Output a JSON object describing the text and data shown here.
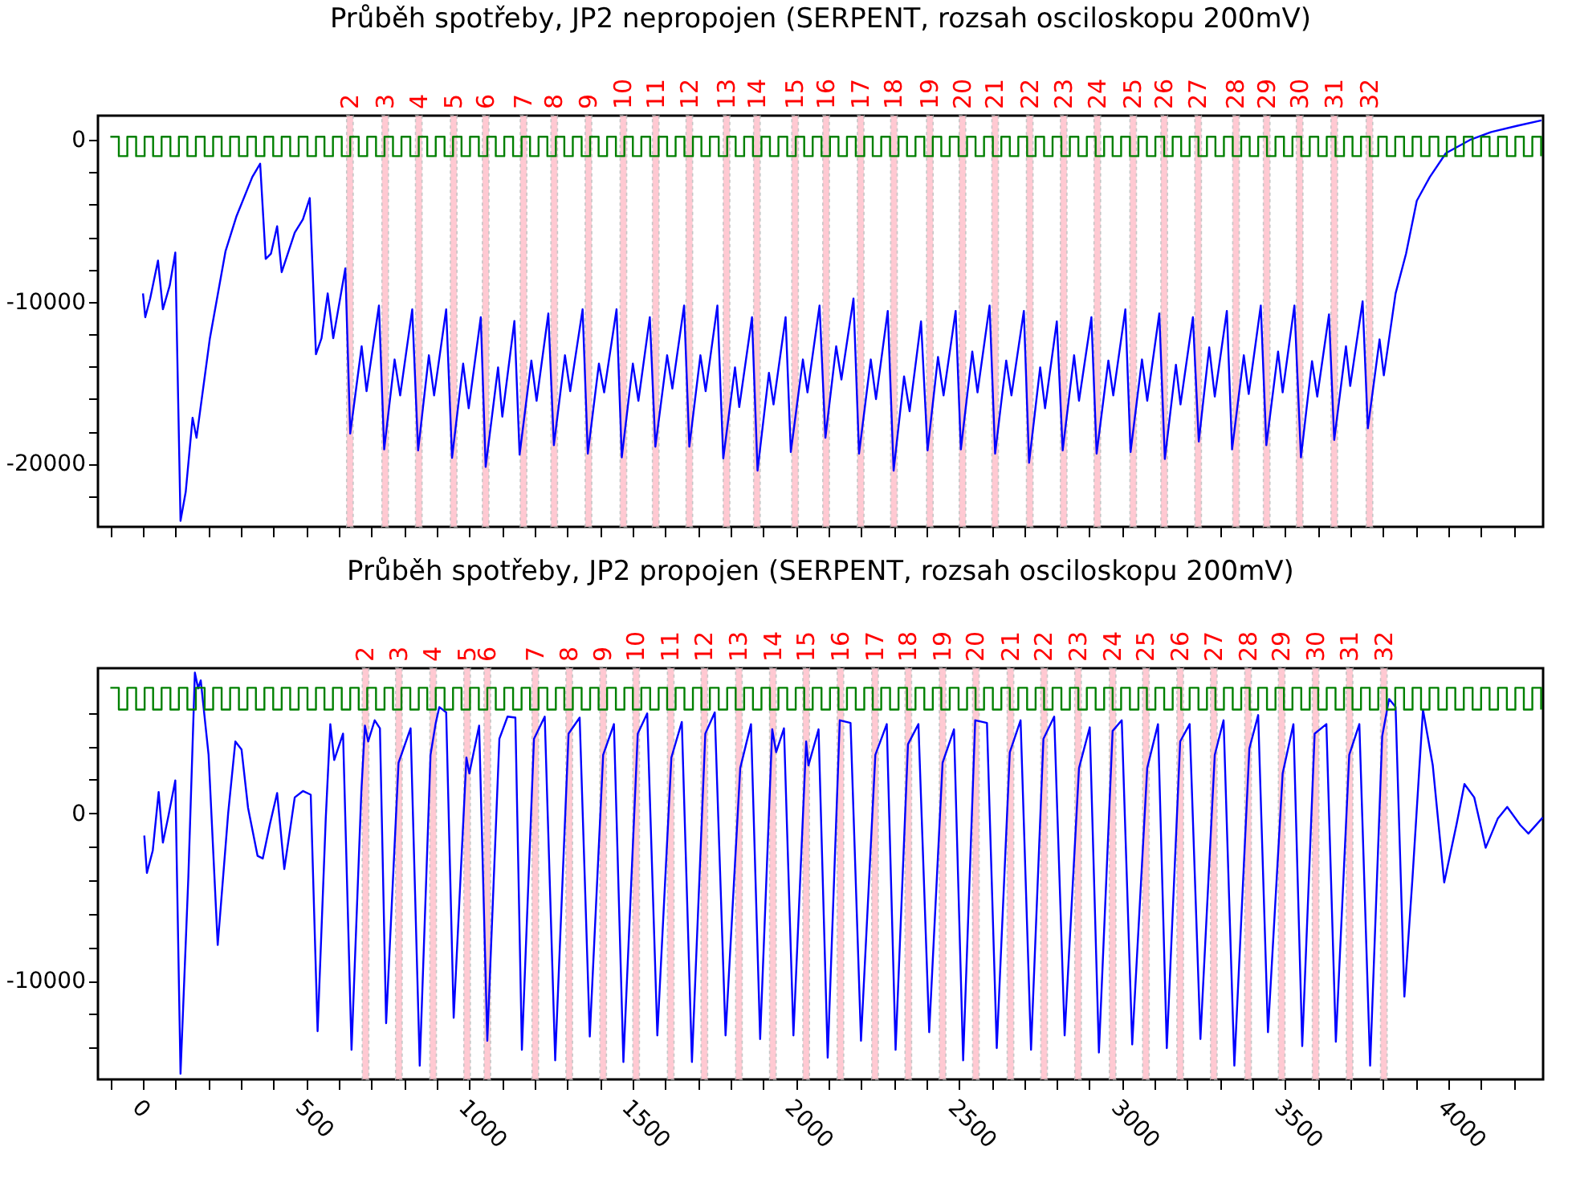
{
  "chart_data": [
    {
      "type": "line",
      "title": "Průběh spotřeby, JP2 nepropojen (SERPENT, rozsah osciloskopu 200mV)",
      "xlim": [
        -138,
        4290
      ],
      "ylim": [
        -23900,
        1500
      ],
      "xticks": [
        {
          "value": -100,
          "label": null
        },
        0,
        {
          "value": 100,
          "label": null
        },
        {
          "value": 200,
          "label": null
        },
        {
          "value": 300,
          "label": null
        },
        {
          "value": 400,
          "label": null
        },
        500,
        {
          "value": 600,
          "label": null
        },
        {
          "value": 700,
          "label": null
        },
        {
          "value": 800,
          "label": null
        },
        {
          "value": 900,
          "label": null
        },
        1000,
        {
          "value": 1100,
          "label": null
        },
        {
          "value": 1200,
          "label": null
        },
        {
          "value": 1300,
          "label": null
        },
        {
          "value": 1400,
          "label": null
        },
        1500,
        {
          "value": 1600,
          "label": null
        },
        {
          "value": 1700,
          "label": null
        },
        {
          "value": 1800,
          "label": null
        },
        {
          "value": 1900,
          "label": null
        },
        2000,
        {
          "value": 2100,
          "label": null
        },
        {
          "value": 2200,
          "label": null
        },
        {
          "value": 2300,
          "label": null
        },
        {
          "value": 2400,
          "label": null
        },
        2500,
        {
          "value": 2600,
          "label": null
        },
        {
          "value": 2700,
          "label": null
        },
        {
          "value": 2800,
          "label": null
        },
        {
          "value": 2900,
          "label": null
        },
        3000,
        {
          "value": 3100,
          "label": null
        },
        {
          "value": 3200,
          "label": null
        },
        {
          "value": 3300,
          "label": null
        },
        {
          "value": 3400,
          "label": null
        },
        3500,
        {
          "value": 3600,
          "label": null
        },
        {
          "value": 3700,
          "label": null
        },
        {
          "value": 3800,
          "label": null
        },
        {
          "value": 3900,
          "label": null
        },
        4000,
        {
          "value": 4100,
          "label": null
        },
        {
          "value": 4200,
          "label": null
        }
      ],
      "yticks": [
        {
          "value": -22000,
          "label": null
        },
        -20000,
        {
          "value": -18000,
          "label": null
        },
        {
          "value": -16000,
          "label": null
        },
        {
          "value": -14000,
          "label": null
        },
        {
          "value": -12000,
          "label": null
        },
        -10000,
        {
          "value": -8000,
          "label": null
        },
        {
          "value": -6000,
          "label": null
        },
        {
          "value": -4000,
          "label": null
        },
        {
          "value": -2000,
          "label": null
        },
        0
      ],
      "tick_labels": "y",
      "bands": [
        {
          "axis": "x",
          "from": 624,
          "to": 644,
          "label": "2",
          "color": "#ffc0cb"
        },
        {
          "axis": "x",
          "from": 732,
          "to": 752,
          "label": "3",
          "color": "#ffc0cb"
        },
        {
          "axis": "x",
          "from": 835,
          "to": 855,
          "label": "4",
          "color": "#ffc0cb"
        },
        {
          "axis": "x",
          "from": 942,
          "to": 962,
          "label": "5",
          "color": "#ffc0cb"
        },
        {
          "axis": "x",
          "from": 1040,
          "to": 1060,
          "label": "6",
          "color": "#ffc0cb"
        },
        {
          "axis": "x",
          "from": 1156,
          "to": 1176,
          "label": "7",
          "color": "#ffc0cb"
        },
        {
          "axis": "x",
          "from": 1250,
          "to": 1270,
          "label": "8",
          "color": "#ffc0cb"
        },
        {
          "axis": "x",
          "from": 1355,
          "to": 1375,
          "label": "9",
          "color": "#ffc0cb"
        },
        {
          "axis": "x",
          "from": 1462,
          "to": 1482,
          "label": "10",
          "color": "#ffc0cb"
        },
        {
          "axis": "x",
          "from": 1561,
          "to": 1581,
          "label": "11",
          "color": "#ffc0cb"
        },
        {
          "axis": "x",
          "from": 1664,
          "to": 1684,
          "label": "12",
          "color": "#ffc0cb"
        },
        {
          "axis": "x",
          "from": 1778,
          "to": 1798,
          "label": "13",
          "color": "#ffc0cb"
        },
        {
          "axis": "x",
          "from": 1871,
          "to": 1891,
          "label": "14",
          "color": "#ffc0cb"
        },
        {
          "axis": "x",
          "from": 1988,
          "to": 2008,
          "label": "15",
          "color": "#ffc0cb"
        },
        {
          "axis": "x",
          "from": 2083,
          "to": 2103,
          "label": "16",
          "color": "#ffc0cb"
        },
        {
          "axis": "x",
          "from": 2189,
          "to": 2209,
          "label": "17",
          "color": "#ffc0cb"
        },
        {
          "axis": "x",
          "from": 2291,
          "to": 2311,
          "label": "18",
          "color": "#ffc0cb"
        },
        {
          "axis": "x",
          "from": 2401,
          "to": 2421,
          "label": "19",
          "color": "#ffc0cb"
        },
        {
          "axis": "x",
          "from": 2501,
          "to": 2521,
          "label": "20",
          "color": "#ffc0cb"
        },
        {
          "axis": "x",
          "from": 2601,
          "to": 2621,
          "label": "21",
          "color": "#ffc0cb"
        },
        {
          "axis": "x",
          "from": 2707,
          "to": 2727,
          "label": "22",
          "color": "#ffc0cb"
        },
        {
          "axis": "x",
          "from": 2811,
          "to": 2831,
          "label": "23",
          "color": "#ffc0cb"
        },
        {
          "axis": "x",
          "from": 2914,
          "to": 2934,
          "label": "24",
          "color": "#ffc0cb"
        },
        {
          "axis": "x",
          "from": 3024,
          "to": 3044,
          "label": "25",
          "color": "#ffc0cb"
        },
        {
          "axis": "x",
          "from": 3119,
          "to": 3139,
          "label": "26",
          "color": "#ffc0cb"
        },
        {
          "axis": "x",
          "from": 3223,
          "to": 3243,
          "label": "27",
          "color": "#ffc0cb"
        },
        {
          "axis": "x",
          "from": 3339,
          "to": 3359,
          "label": "28",
          "color": "#ffc0cb"
        },
        {
          "axis": "x",
          "from": 3433,
          "to": 3453,
          "label": "29",
          "color": "#ffc0cb"
        },
        {
          "axis": "x",
          "from": 3534,
          "to": 3554,
          "label": "30",
          "color": "#ffc0cb"
        },
        {
          "axis": "x",
          "from": 3640,
          "to": 3660,
          "label": "31",
          "color": "#ffc0cb"
        },
        {
          "axis": "x",
          "from": 3748,
          "to": 3768,
          "label": "32",
          "color": "#ffc0cb"
        }
      ],
      "series": [
        {
          "color": "#0000ff",
          "x": [
            0,
            7,
            22,
            46,
            61,
            82,
            99,
            115,
            131,
            152,
            164,
            205,
            253,
            286,
            335,
            359,
            376,
            392,
            411,
            425,
            465,
            490,
            511,
            530,
            547,
            566,
            583,
            620,
            635,
            670,
            685,
            723,
            739,
            771,
            788,
            825,
            843,
            876,
            892,
            929,
            947,
            981,
            998,
            1035,
            1050,
            1088,
            1101,
            1138,
            1154,
            1190,
            1206,
            1242,
            1259,
            1293,
            1309,
            1347,
            1363,
            1397,
            1413,
            1451,
            1467,
            1501,
            1518,
            1553,
            1570,
            1606,
            1622,
            1658,
            1674,
            1708,
            1724,
            1760,
            1778,
            1814,
            1827,
            1866,
            1883,
            1918,
            1932,
            1969,
            1985,
            2022,
            2036,
            2073,
            2091,
            2124,
            2140,
            2177,
            2194,
            2230,
            2246,
            2282,
            2300,
            2332,
            2349,
            2384,
            2404,
            2436,
            2453,
            2490,
            2506,
            2541,
            2557,
            2594,
            2611,
            2645,
            2661,
            2699,
            2715,
            2749,
            2764,
            2800,
            2818,
            2853,
            2868,
            2906,
            2922,
            2958,
            2973,
            3010,
            3026,
            3061,
            3077,
            3114,
            3131,
            3165,
            3179,
            3217,
            3235,
            3267,
            3284,
            3321,
            3337,
            3373,
            3388,
            3425,
            3442,
            3478,
            3492,
            3528,
            3548,
            3582,
            3598,
            3634,
            3650,
            3686,
            3699,
            3737,
            3753,
            3789,
            3802,
            3838,
            3870,
            3903,
            3943,
            3992,
            4066,
            4131,
            4212,
            4285
          ],
          "values": [
            -9480,
            -10950,
            -9800,
            -7450,
            -10460,
            -8990,
            -6960,
            -23530,
            -21730,
            -17160,
            -18400,
            -12250,
            -6860,
            -4740,
            -2290,
            -1470,
            -7350,
            -7030,
            -5330,
            -8170,
            -5720,
            -4900,
            -3590,
            -13240,
            -12250,
            -9480,
            -12250,
            -7940,
            -18140,
            -12750,
            -15520,
            -10230,
            -19120,
            -13560,
            -15780,
            -10460,
            -19180,
            -13300,
            -15780,
            -10460,
            -19640,
            -13820,
            -16570,
            -10950,
            -20200,
            -14050,
            -17090,
            -11180,
            -19440,
            -13630,
            -16110,
            -10720,
            -18860,
            -13300,
            -15520,
            -10460,
            -19380,
            -13820,
            -15590,
            -10460,
            -19610,
            -13820,
            -16110,
            -10950,
            -18950,
            -13300,
            -15360,
            -10230,
            -18950,
            -13300,
            -15520,
            -10230,
            -19670,
            -14050,
            -16500,
            -10950,
            -20430,
            -14380,
            -16340,
            -10950,
            -19280,
            -13560,
            -15590,
            -10230,
            -18400,
            -12750,
            -14800,
            -9800,
            -19380,
            -13560,
            -16010,
            -10560,
            -20430,
            -14610,
            -16760,
            -11210,
            -19180,
            -13400,
            -15780,
            -10560,
            -19120,
            -13070,
            -15590,
            -10230,
            -19380,
            -13630,
            -15780,
            -10560,
            -19940,
            -14050,
            -16570,
            -11210,
            -19180,
            -13300,
            -16110,
            -10950,
            -19380,
            -13630,
            -15780,
            -10460,
            -19280,
            -13560,
            -16110,
            -10720,
            -19710,
            -13890,
            -16340,
            -10950,
            -18630,
            -12810,
            -15850,
            -10560,
            -19120,
            -13300,
            -15690,
            -10230,
            -18860,
            -13070,
            -15590,
            -10230,
            -19610,
            -13660,
            -15850,
            -10780,
            -18530,
            -12750,
            -15200,
            -9970,
            -17810,
            -12320,
            -14540,
            -9480,
            -7030,
            -3760,
            -2290,
            -820,
            0,
            490,
            880,
            1210
          ]
        },
        {
          "type": "step",
          "color": "#008000",
          "x": [
            -100,
            -74,
            -48,
            -21,
            5,
            31,
            57,
            84,
            110,
            136,
            162,
            189,
            215,
            241,
            267,
            294,
            320,
            346,
            372,
            399,
            425,
            451,
            477,
            504,
            530,
            556,
            582,
            609,
            635,
            661,
            687,
            714,
            740,
            766,
            792,
            819,
            845,
            871,
            897,
            924,
            950,
            976,
            1002,
            1029,
            1055,
            1081,
            1107,
            1134,
            1160,
            1186,
            1212,
            1239,
            1265,
            1291,
            1317,
            1344,
            1370,
            1396,
            1422,
            1449,
            1475,
            1501,
            1527,
            1554,
            1580,
            1606,
            1632,
            1659,
            1685,
            1711,
            1737,
            1764,
            1790,
            1816,
            1842,
            1869,
            1895,
            1921,
            1947,
            1974,
            2000,
            2026,
            2052,
            2079,
            2105,
            2131,
            2157,
            2184,
            2210,
            2236,
            2262,
            2289,
            2315,
            2341,
            2367,
            2394,
            2420,
            2446,
            2472,
            2499,
            2525,
            2551,
            2577,
            2604,
            2630,
            2656,
            2682,
            2709,
            2735,
            2761,
            2787,
            2814,
            2840,
            2866,
            2892,
            2919,
            2945,
            2971,
            2997,
            3024,
            3050,
            3076,
            3102,
            3129,
            3155,
            3181,
            3207,
            3234,
            3260,
            3286,
            3312,
            3339,
            3365,
            3391,
            3417,
            3444,
            3470,
            3496,
            3522,
            3549,
            3575,
            3601,
            3627,
            3654,
            3680,
            3706,
            3732,
            3759,
            3785,
            3811,
            3837,
            3864,
            3890,
            3916,
            3942,
            3969,
            3995,
            4021,
            4047,
            4074,
            4100,
            4126,
            4152,
            4179,
            4205,
            4231,
            4257,
            4284
          ],
          "values": [
            200,
            -1000,
            200,
            -1000,
            200,
            -1000,
            200,
            -1000,
            200,
            -1000,
            200,
            -1000,
            200,
            -1000,
            200,
            -1000,
            200,
            -1000,
            200,
            -1000,
            200,
            -1000,
            200,
            -1000,
            200,
            -1000,
            200,
            -1000,
            200,
            -1000,
            200,
            -1000,
            200,
            -1000,
            200,
            -1000,
            200,
            -1000,
            200,
            -1000,
            200,
            -1000,
            200,
            -1000,
            200,
            -1000,
            200,
            -1000,
            200,
            -1000,
            200,
            -1000,
            200,
            -1000,
            200,
            -1000,
            200,
            -1000,
            200,
            -1000,
            200,
            -1000,
            200,
            -1000,
            200,
            -1000,
            200,
            -1000,
            200,
            -1000,
            200,
            -1000,
            200,
            -1000,
            200,
            -1000,
            200,
            -1000,
            200,
            -1000,
            200,
            -1000,
            200,
            -1000,
            200,
            -1000,
            200,
            -1000,
            200,
            -1000,
            200,
            -1000,
            200,
            -1000,
            200,
            -1000,
            200,
            -1000,
            200,
            -1000,
            200,
            -1000,
            200,
            -1000,
            200,
            -1000,
            200,
            -1000,
            200,
            -1000,
            200,
            -1000,
            200,
            -1000,
            200,
            -1000,
            200,
            -1000,
            200,
            -1000,
            200,
            -1000,
            200,
            -1000,
            200,
            -1000,
            200,
            -1000,
            200,
            -1000,
            200,
            -1000,
            200,
            -1000,
            200,
            -1000,
            200,
            -1000,
            200,
            -1000,
            200,
            -1000,
            200,
            -1000,
            200,
            -1000,
            200,
            -1000,
            200,
            -1000,
            200,
            -1000,
            200,
            -1000,
            200,
            -1000,
            200,
            -1000,
            200,
            -1000,
            200,
            -1000,
            200,
            -1000,
            200,
            -1000,
            200,
            -1000
          ]
        }
      ]
    },
    {
      "type": "line",
      "title": "Průběh spotřeby, JP2 propojen (SERPENT, rozsah osciloskopu 200mV)",
      "xlim": [
        -138,
        4290
      ],
      "ylim": [
        -15900,
        8670
      ],
      "xticks": [
        {
          "value": -100,
          "label": null
        },
        0,
        {
          "value": 100,
          "label": null
        },
        {
          "value": 200,
          "label": null
        },
        {
          "value": 300,
          "label": null
        },
        {
          "value": 400,
          "label": null
        },
        500,
        {
          "value": 600,
          "label": null
        },
        {
          "value": 700,
          "label": null
        },
        {
          "value": 800,
          "label": null
        },
        {
          "value": 900,
          "label": null
        },
        1000,
        {
          "value": 1100,
          "label": null
        },
        {
          "value": 1200,
          "label": null
        },
        {
          "value": 1300,
          "label": null
        },
        {
          "value": 1400,
          "label": null
        },
        1500,
        {
          "value": 1600,
          "label": null
        },
        {
          "value": 1700,
          "label": null
        },
        {
          "value": 1800,
          "label": null
        },
        {
          "value": 1900,
          "label": null
        },
        2000,
        {
          "value": 2100,
          "label": null
        },
        {
          "value": 2200,
          "label": null
        },
        {
          "value": 2300,
          "label": null
        },
        {
          "value": 2400,
          "label": null
        },
        2500,
        {
          "value": 2600,
          "label": null
        },
        {
          "value": 2700,
          "label": null
        },
        {
          "value": 2800,
          "label": null
        },
        {
          "value": 2900,
          "label": null
        },
        3000,
        {
          "value": 3100,
          "label": null
        },
        {
          "value": 3200,
          "label": null
        },
        {
          "value": 3300,
          "label": null
        },
        {
          "value": 3400,
          "label": null
        },
        3500,
        {
          "value": 3600,
          "label": null
        },
        {
          "value": 3700,
          "label": null
        },
        {
          "value": 3800,
          "label": null
        },
        {
          "value": 3900,
          "label": null
        },
        4000,
        {
          "value": 4100,
          "label": null
        },
        {
          "value": 4200,
          "label": null
        }
      ],
      "yticks": [
        {
          "value": -14000,
          "label": null
        },
        {
          "value": -12000,
          "label": null
        },
        -10000,
        {
          "value": -8000,
          "label": null
        },
        {
          "value": -6000,
          "label": null
        },
        {
          "value": -4000,
          "label": null
        },
        {
          "value": -2000,
          "label": null
        },
        0,
        {
          "value": 2000,
          "label": null
        },
        {
          "value": 4000,
          "label": null
        },
        {
          "value": 6000,
          "label": null
        }
      ],
      "bands": [
        {
          "axis": "x",
          "from": 672,
          "to": 692,
          "label": "2",
          "color": "#ffc0cb"
        },
        {
          "axis": "x",
          "from": 774,
          "to": 794,
          "label": "3",
          "color": "#ffc0cb"
        },
        {
          "axis": "x",
          "from": 879,
          "to": 899,
          "label": "4",
          "color": "#ffc0cb"
        },
        {
          "axis": "x",
          "from": 983,
          "to": 1003,
          "label": "5",
          "color": "#ffc0cb"
        },
        {
          "axis": "x",
          "from": 1045,
          "to": 1065,
          "label": "6",
          "color": "#ffc0cb"
        },
        {
          "axis": "x",
          "from": 1192,
          "to": 1212,
          "label": "7",
          "color": "#ffc0cb"
        },
        {
          "axis": "x",
          "from": 1296,
          "to": 1316,
          "label": "8",
          "color": "#ffc0cb"
        },
        {
          "axis": "x",
          "from": 1400,
          "to": 1420,
          "label": "9",
          "color": "#ffc0cb"
        },
        {
          "axis": "x",
          "from": 1501,
          "to": 1521,
          "label": "10",
          "color": "#ffc0cb"
        },
        {
          "axis": "x",
          "from": 1607,
          "to": 1627,
          "label": "11",
          "color": "#ffc0cb"
        },
        {
          "axis": "x",
          "from": 1710,
          "to": 1730,
          "label": "12",
          "color": "#ffc0cb"
        },
        {
          "axis": "x",
          "from": 1816,
          "to": 1836,
          "label": "13",
          "color": "#ffc0cb"
        },
        {
          "axis": "x",
          "from": 1920,
          "to": 1940,
          "label": "14",
          "color": "#ffc0cb"
        },
        {
          "axis": "x",
          "from": 2022,
          "to": 2042,
          "label": "15",
          "color": "#ffc0cb"
        },
        {
          "axis": "x",
          "from": 2127,
          "to": 2147,
          "label": "16",
          "color": "#ffc0cb"
        },
        {
          "axis": "x",
          "from": 2233,
          "to": 2253,
          "label": "17",
          "color": "#ffc0cb"
        },
        {
          "axis": "x",
          "from": 2335,
          "to": 2355,
          "label": "18",
          "color": "#ffc0cb"
        },
        {
          "axis": "x",
          "from": 2440,
          "to": 2460,
          "label": "19",
          "color": "#ffc0cb"
        },
        {
          "axis": "x",
          "from": 2542,
          "to": 2562,
          "label": "20",
          "color": "#ffc0cb"
        },
        {
          "axis": "x",
          "from": 2648,
          "to": 2668,
          "label": "21",
          "color": "#ffc0cb"
        },
        {
          "axis": "x",
          "from": 2751,
          "to": 2771,
          "label": "22",
          "color": "#ffc0cb"
        },
        {
          "axis": "x",
          "from": 2855,
          "to": 2875,
          "label": "23",
          "color": "#ffc0cb"
        },
        {
          "axis": "x",
          "from": 2961,
          "to": 2981,
          "label": "24",
          "color": "#ffc0cb"
        },
        {
          "axis": "x",
          "from": 3063,
          "to": 3083,
          "label": "25",
          "color": "#ffc0cb"
        },
        {
          "axis": "x",
          "from": 3168,
          "to": 3188,
          "label": "26",
          "color": "#ffc0cb"
        },
        {
          "axis": "x",
          "from": 3271,
          "to": 3291,
          "label": "27",
          "color": "#ffc0cb"
        },
        {
          "axis": "x",
          "from": 3376,
          "to": 3396,
          "label": "28",
          "color": "#ffc0cb"
        },
        {
          "axis": "x",
          "from": 3479,
          "to": 3499,
          "label": "29",
          "color": "#ffc0cb"
        },
        {
          "axis": "x",
          "from": 3583,
          "to": 3603,
          "label": "30",
          "color": "#ffc0cb"
        },
        {
          "axis": "x",
          "from": 3687,
          "to": 3707,
          "label": "31",
          "color": "#ffc0cb"
        },
        {
          "axis": "x",
          "from": 3792,
          "to": 3812,
          "label": "32",
          "color": "#ffc0cb"
        }
      ],
      "series": [
        {
          "color": "#0000ff",
          "x": [
            4,
            12,
            30,
            48,
            61,
            77,
            99,
            115,
            139,
            159,
            169,
            177,
            201,
            229,
            261,
            283,
            302,
            322,
            351,
            367,
            389,
            411,
            433,
            465,
            490,
            514,
            535,
            560,
            574,
            586,
            613,
            639,
            669,
            680,
            690,
            710,
            726,
            745,
            783,
            820,
            848,
            881,
            897,
            908,
            929,
            952,
            991,
            1000,
            1030,
            1055,
            1092,
            1117,
            1141,
            1161,
            1198,
            1231,
            1263,
            1304,
            1338,
            1369,
            1410,
            1443,
            1472,
            1516,
            1545,
            1576,
            1619,
            1651,
            1682,
            1723,
            1752,
            1785,
            1830,
            1863,
            1891,
            1928,
            1940,
            1964,
            1993,
            2032,
            2039,
            2070,
            2098,
            2135,
            2168,
            2200,
            2244,
            2279,
            2306,
            2344,
            2376,
            2409,
            2450,
            2485,
            2513,
            2550,
            2586,
            2616,
            2656,
            2689,
            2721,
            2759,
            2792,
            2824,
            2868,
            2901,
            2929,
            2971,
            2999,
            3031,
            3077,
            3110,
            3137,
            3178,
            3207,
            3240,
            3284,
            3311,
            3344,
            3390,
            3417,
            3447,
            3492,
            3525,
            3552,
            3590,
            3626,
            3655,
            3696,
            3727,
            3760,
            3797,
            3818,
            3838,
            3865,
            3890,
            3922,
            3952,
            3987,
            4025,
            4049,
            4079,
            4114,
            4151,
            4180,
            4220,
            4245,
            4289
          ],
          "values": [
            -1330,
            -3560,
            -2220,
            1270,
            -1750,
            -250,
            1970,
            -15560,
            -3810,
            8410,
            7460,
            7940,
            3490,
            -7870,
            0,
            4290,
            3810,
            320,
            -2540,
            -2700,
            -640,
            1210,
            -3330,
            950,
            1330,
            1110,
            -13020,
            -320,
            5330,
            3180,
            4760,
            -14130,
            1270,
            5240,
            4290,
            5560,
            5080,
            -12540,
            3020,
            5080,
            -15080,
            3490,
            5400,
            6350,
            6030,
            -12220,
            3330,
            2380,
            5240,
            -13590,
            4450,
            5780,
            5720,
            -14130,
            4450,
            5780,
            -14760,
            4760,
            5720,
            -13340,
            3490,
            5330,
            -14860,
            4760,
            5970,
            -13270,
            3330,
            5460,
            -14860,
            4760,
            6030,
            -13270,
            2700,
            5330,
            -13490,
            5020,
            3650,
            5080,
            -13270,
            4290,
            2860,
            5020,
            -14600,
            5560,
            5400,
            -13590,
            3490,
            5330,
            -14130,
            4130,
            5330,
            -13080,
            3020,
            5020,
            -14760,
            5560,
            5400,
            -14030,
            3650,
            5560,
            -14130,
            4450,
            5780,
            -13270,
            2700,
            5140,
            -14290,
            4920,
            5560,
            -13810,
            2700,
            5330,
            -14030,
            4290,
            5330,
            -13490,
            3490,
            5560,
            -15080,
            3870,
            5870,
            -13080,
            2380,
            5330,
            -13910,
            4760,
            5330,
            -13650,
            3490,
            5330,
            -15080,
            4600,
            6830,
            6350,
            -10950,
            -3810,
            6190,
            2860,
            -4130,
            -640,
            1750,
            950,
            -2060,
            -320,
            380,
            -700,
            -1210,
            -250
          ]
        },
        {
          "type": "step",
          "color": "#008000",
          "x": [
            -100,
            -74,
            -48,
            -21,
            5,
            31,
            57,
            84,
            110,
            136,
            162,
            189,
            215,
            241,
            267,
            294,
            320,
            346,
            372,
            399,
            425,
            451,
            477,
            504,
            530,
            556,
            582,
            609,
            635,
            661,
            687,
            714,
            740,
            766,
            792,
            819,
            845,
            871,
            897,
            924,
            950,
            976,
            1002,
            1029,
            1055,
            1081,
            1107,
            1134,
            1160,
            1186,
            1212,
            1239,
            1265,
            1291,
            1317,
            1344,
            1370,
            1396,
            1422,
            1449,
            1475,
            1501,
            1527,
            1554,
            1580,
            1606,
            1632,
            1659,
            1685,
            1711,
            1737,
            1764,
            1790,
            1816,
            1842,
            1869,
            1895,
            1921,
            1947,
            1974,
            2000,
            2026,
            2052,
            2079,
            2105,
            2131,
            2157,
            2184,
            2210,
            2236,
            2262,
            2289,
            2315,
            2341,
            2367,
            2394,
            2420,
            2446,
            2472,
            2499,
            2525,
            2551,
            2577,
            2604,
            2630,
            2656,
            2682,
            2709,
            2735,
            2761,
            2787,
            2814,
            2840,
            2866,
            2892,
            2919,
            2945,
            2971,
            2997,
            3024,
            3050,
            3076,
            3102,
            3129,
            3155,
            3181,
            3207,
            3234,
            3260,
            3286,
            3312,
            3339,
            3365,
            3391,
            3417,
            3444,
            3470,
            3496,
            3522,
            3549,
            3575,
            3601,
            3627,
            3654,
            3680,
            3706,
            3732,
            3759,
            3785,
            3811,
            3837,
            3864,
            3890,
            3916,
            3942,
            3969,
            3995,
            4021,
            4047,
            4074,
            4100,
            4126,
            4152,
            4179,
            4205,
            4231,
            4257,
            4284
          ],
          "values": [
            7500,
            6200,
            7500,
            6200,
            7500,
            6200,
            7500,
            6200,
            7500,
            6200,
            7500,
            6200,
            7500,
            6200,
            7500,
            6200,
            7500,
            6200,
            7500,
            6200,
            7500,
            6200,
            7500,
            6200,
            7500,
            6200,
            7500,
            6200,
            7500,
            6200,
            7500,
            6200,
            7500,
            6200,
            7500,
            6200,
            7500,
            6200,
            7500,
            6200,
            7500,
            6200,
            7500,
            6200,
            7500,
            6200,
            7500,
            6200,
            7500,
            6200,
            7500,
            6200,
            7500,
            6200,
            7500,
            6200,
            7500,
            6200,
            7500,
            6200,
            7500,
            6200,
            7500,
            6200,
            7500,
            6200,
            7500,
            6200,
            7500,
            6200,
            7500,
            6200,
            7500,
            6200,
            7500,
            6200,
            7500,
            6200,
            7500,
            6200,
            7500,
            6200,
            7500,
            6200,
            7500,
            6200,
            7500,
            6200,
            7500,
            6200,
            7500,
            6200,
            7500,
            6200,
            7500,
            6200,
            7500,
            6200,
            7500,
            6200,
            7500,
            6200,
            7500,
            6200,
            7500,
            6200,
            7500,
            6200,
            7500,
            6200,
            7500,
            6200,
            7500,
            6200,
            7500,
            6200,
            7500,
            6200,
            7500,
            6200,
            7500,
            6200,
            7500,
            6200,
            7500,
            6200,
            7500,
            6200,
            7500,
            6200,
            7500,
            6200,
            7500,
            6200,
            7500,
            6200,
            7500,
            6200,
            7500,
            6200,
            7500,
            6200,
            7500,
            6200,
            7500,
            6200,
            7500,
            6200,
            7500,
            6200,
            7500,
            6200,
            7500,
            6200,
            7500,
            6200,
            7500,
            6200,
            7500,
            6200,
            7500,
            6200,
            7500,
            6200,
            7500,
            6200,
            7500,
            6200
          ]
        }
      ]
    }
  ]
}
